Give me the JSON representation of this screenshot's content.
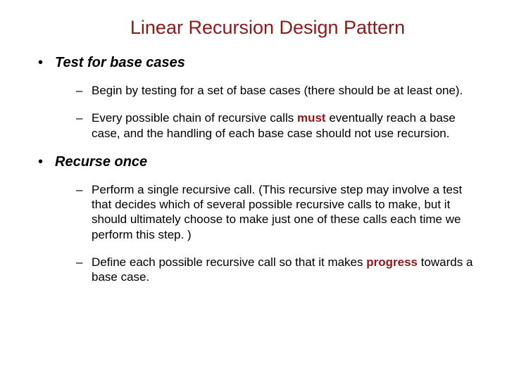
{
  "colors": {
    "title_color": "#8b1a1a",
    "body_color": "#000000",
    "emphasis_color": "#8b1a1a",
    "background": "#ffffff"
  },
  "typography": {
    "title_fontsize": 27,
    "level1_fontsize": 20,
    "level2_fontsize": 17,
    "font_family": "Arial"
  },
  "title": "Linear Recursion Design Pattern",
  "sections": [
    {
      "heading": "Test for base cases",
      "items": [
        {
          "pre": "Begin by testing for a set of base cases (there should be at least one).",
          "emph": "",
          "post": ""
        },
        {
          "pre": "Every possible chain of recursive calls ",
          "emph": "must",
          "post": " eventually reach a base case, and the handling of each base case should not use recursion."
        }
      ]
    },
    {
      "heading": "Recurse once",
      "items": [
        {
          "pre": "Perform a single recursive call. (This recursive step may involve a test that decides which of several possible recursive calls to make, but it should ultimately choose to make just one of these calls each time we perform this step. )",
          "emph": "",
          "post": ""
        },
        {
          "pre": "Define each possible recursive call so that it makes ",
          "emph": "progress",
          "post": " towards a base case."
        }
      ]
    }
  ]
}
